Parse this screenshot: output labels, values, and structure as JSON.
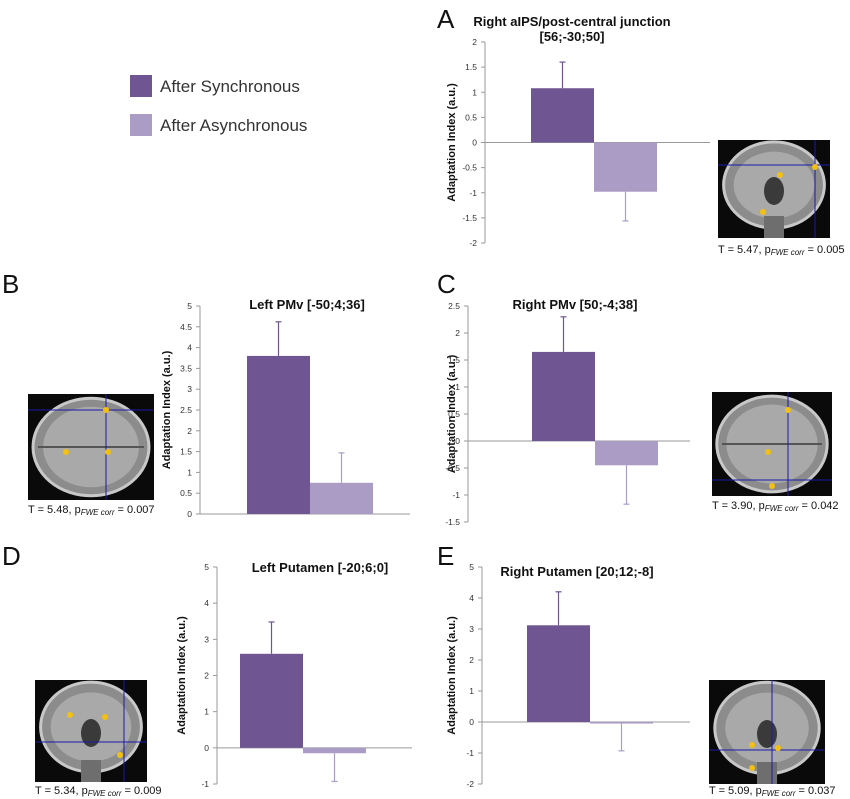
{
  "legend": [
    {
      "label": "After Synchronous",
      "color": "#6f5592"
    },
    {
      "label": "After Asynchronous",
      "color": "#ab9cc6"
    }
  ],
  "colors": {
    "sync": "#6f5592",
    "async": "#ab9cc6",
    "error": "#6f5592",
    "error_async": "#ab9cc6",
    "crosshair": "#1a1aa8",
    "activation": "#f2c012"
  },
  "chart_data": [
    {
      "panel": "A",
      "type": "bar",
      "title_lines": [
        "Right aIPS/post-central junction",
        "[56;-30;50]"
      ],
      "ylabel": "Adaptation Index (a.u.)",
      "ylim": [
        -2,
        2
      ],
      "yticks": [
        2,
        1.5,
        1,
        0.5,
        0,
        -0.5,
        -1,
        -1.5,
        -2
      ],
      "series": [
        {
          "name": "After Synchronous",
          "value": 1.08,
          "error": 0.52
        },
        {
          "name": "After Asynchronous",
          "value": -0.98,
          "error": 0.58
        }
      ],
      "stat": {
        "t": "T = 5.47, p",
        "sub": "FWE corr",
        "p": " = 0.005"
      },
      "brain_view": "coronal"
    },
    {
      "panel": "B",
      "type": "bar",
      "title_lines": [
        "Left PMv [-50;4;36]"
      ],
      "ylabel": "Adaptation Index (a.u.)",
      "ylim": [
        0,
        5
      ],
      "yticks": [
        5,
        4.5,
        4,
        3.5,
        3,
        2.5,
        2,
        1.5,
        1,
        0.5,
        0
      ],
      "series": [
        {
          "name": "After Synchronous",
          "value": 3.8,
          "error": 0.82
        },
        {
          "name": "After Asynchronous",
          "value": 0.75,
          "error": 0.72
        }
      ],
      "stat": {
        "t": "T = 5.48, p",
        "sub": "FWE corr",
        "p": " = 0.007"
      },
      "brain_view": "axial"
    },
    {
      "panel": "C",
      "type": "bar",
      "title_lines": [
        "Right PMv [50;-4;38]"
      ],
      "ylabel": "Adaptation Index (a.u.)",
      "ylim": [
        -1.5,
        2.5
      ],
      "yticks": [
        2.5,
        2,
        1.5,
        1,
        0.5,
        0,
        -0.5,
        -1,
        -1.5
      ],
      "series": [
        {
          "name": "After Synchronous",
          "value": 1.65,
          "error": 0.65
        },
        {
          "name": "After Asynchronous",
          "value": -0.45,
          "error": 0.72
        }
      ],
      "stat": {
        "t": "T = 3.90, p",
        "sub": "FWE corr",
        "p": " = 0.042"
      },
      "brain_view": "axial"
    },
    {
      "panel": "D",
      "type": "bar",
      "title_lines": [
        "Left Putamen [-20;6;0]"
      ],
      "ylabel": "Adaptation Index (a.u.)",
      "ylim": [
        -1,
        5
      ],
      "yticks": [
        5,
        4,
        3,
        2,
        1,
        0,
        -1
      ],
      "series": [
        {
          "name": "After Synchronous",
          "value": 2.6,
          "error": 0.88
        },
        {
          "name": "After Asynchronous",
          "value": -0.15,
          "error": 0.78
        }
      ],
      "stat": {
        "t": "T = 5.34, p",
        "sub": "FWE corr",
        "p": " = 0.009"
      },
      "brain_view": "coronal"
    },
    {
      "panel": "E",
      "type": "bar",
      "title_lines": [
        "Right Putamen [20;12;-8]"
      ],
      "ylabel": "Adaptation Index (a.u.)",
      "ylim": [
        -2,
        5
      ],
      "yticks": [
        5,
        4,
        3,
        2,
        1,
        0,
        -1,
        -2
      ],
      "series": [
        {
          "name": "After Synchronous",
          "value": 3.12,
          "error": 1.08
        },
        {
          "name": "After Asynchronous",
          "value": -0.05,
          "error": 0.88
        }
      ],
      "stat": {
        "t": "T = 5.09, p",
        "sub": "FWE corr",
        "p": " = 0.037"
      },
      "brain_view": "coronal"
    }
  ]
}
